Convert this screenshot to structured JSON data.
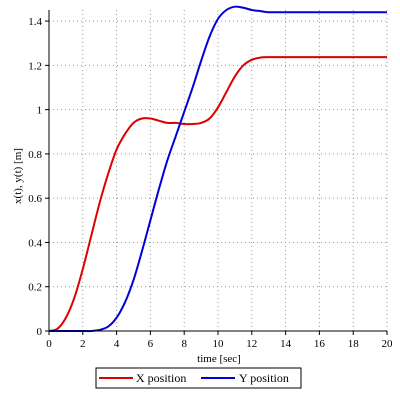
{
  "chart_data": {
    "type": "line",
    "xlabel": "time [sec]",
    "ylabel": "x(t), y(t) [m]",
    "xlim": [
      0,
      20
    ],
    "ylim": [
      0,
      1.45
    ],
    "xticks": [
      0,
      2,
      4,
      6,
      8,
      10,
      12,
      14,
      16,
      18,
      20
    ],
    "yticks": [
      0,
      0.2,
      0.4,
      0.6,
      0.8,
      1,
      1.2,
      1.4
    ],
    "xtick_labels": [
      "0",
      "2",
      "4",
      "6",
      "8",
      "10",
      "12",
      "14",
      "16",
      "18",
      "20"
    ],
    "ytick_labels": [
      "0",
      "0.2",
      "0.4",
      "0.6",
      "0.8",
      "1",
      "1.2",
      "1.4"
    ],
    "grid": true,
    "legend_position": "bottom",
    "series": [
      {
        "name": "X position",
        "color": "#dd0000",
        "x": [
          0,
          0.5,
          1,
          1.5,
          2,
          2.5,
          3,
          3.5,
          4,
          4.5,
          5,
          5.5,
          6,
          6.5,
          7,
          7.5,
          8,
          8.5,
          9,
          9.5,
          10,
          10.5,
          11,
          11.5,
          12,
          12.5,
          13,
          14,
          15,
          16,
          17,
          18,
          19,
          20
        ],
        "y": [
          0,
          0.01,
          0.06,
          0.15,
          0.28,
          0.43,
          0.58,
          0.71,
          0.82,
          0.89,
          0.94,
          0.96,
          0.96,
          0.95,
          0.94,
          0.94,
          0.935,
          0.935,
          0.94,
          0.96,
          1.01,
          1.08,
          1.15,
          1.2,
          1.225,
          1.235,
          1.237,
          1.237,
          1.237,
          1.237,
          1.237,
          1.237,
          1.237,
          1.237
        ]
      },
      {
        "name": "Y position",
        "color": "#0000dd",
        "x": [
          0,
          1,
          2,
          2.5,
          3,
          3.5,
          4,
          4.5,
          5,
          5.5,
          6,
          6.5,
          7,
          7.5,
          8,
          8.5,
          9,
          9.5,
          10,
          10.5,
          11,
          11.5,
          12,
          12.5,
          13,
          14,
          15,
          16,
          17,
          18,
          19,
          20
        ],
        "y": [
          0,
          0,
          0,
          0,
          0.005,
          0.02,
          0.06,
          0.13,
          0.23,
          0.36,
          0.5,
          0.64,
          0.77,
          0.88,
          0.99,
          1.1,
          1.22,
          1.33,
          1.41,
          1.45,
          1.465,
          1.46,
          1.45,
          1.445,
          1.44,
          1.44,
          1.44,
          1.44,
          1.44,
          1.44,
          1.44,
          1.44
        ]
      }
    ]
  },
  "colors": {
    "axis": "#000000",
    "grid": "#999999",
    "background": "#ffffff"
  }
}
